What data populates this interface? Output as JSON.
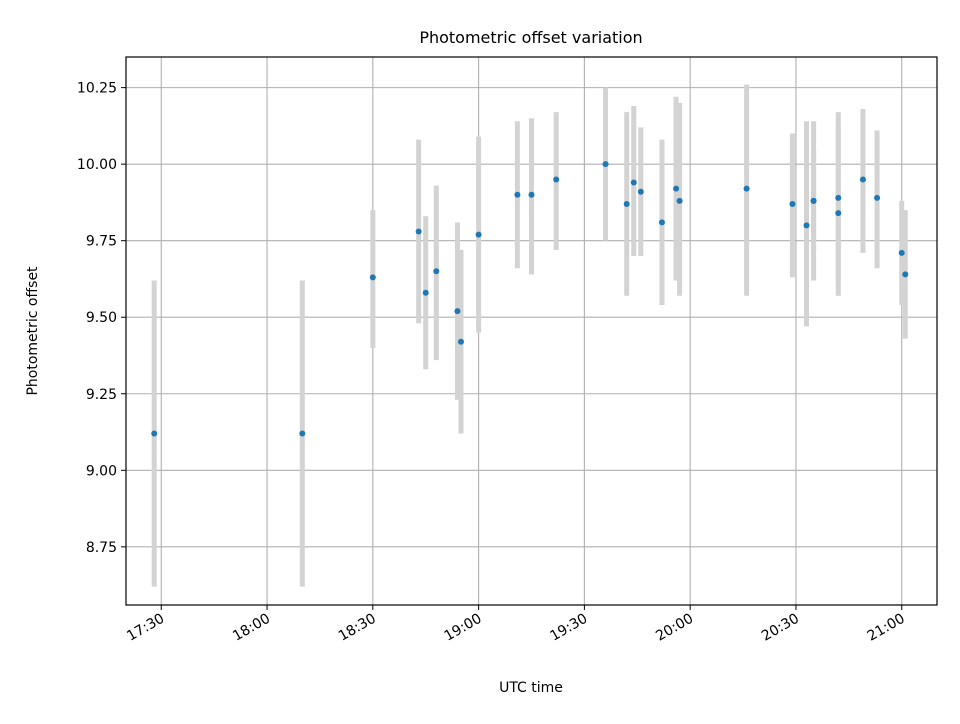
{
  "chart_data": {
    "type": "scatter",
    "title": "Photometric offset variation",
    "xlabel": "UTC time",
    "ylabel": "Photometric offset",
    "x_unit": "UTC time",
    "xlim": [
      "17:20",
      "21:10"
    ],
    "ylim": [
      8.56,
      10.35
    ],
    "x_ticks": [
      "17:30",
      "18:00",
      "18:30",
      "19:00",
      "19:30",
      "20:00",
      "20:30",
      "21:00"
    ],
    "y_ticks": [
      "8.75",
      "9.00",
      "9.25",
      "9.50",
      "9.75",
      "10.00",
      "10.25"
    ],
    "grid": true,
    "marker_color": "#1f77b4",
    "errorbar_color": "#d3d3d3",
    "points": [
      {
        "x": "17:28",
        "y": 9.12,
        "err_low": 8.62,
        "err_high": 9.62
      },
      {
        "x": "18:10",
        "y": 9.12,
        "err_low": 8.62,
        "err_high": 9.62
      },
      {
        "x": "18:30",
        "y": 9.63,
        "err_low": 9.4,
        "err_high": 9.85
      },
      {
        "x": "18:43",
        "y": 9.78,
        "err_low": 9.48,
        "err_high": 10.08
      },
      {
        "x": "18:45",
        "y": 9.58,
        "err_low": 9.33,
        "err_high": 9.83
      },
      {
        "x": "18:48",
        "y": 9.65,
        "err_low": 9.36,
        "err_high": 9.93
      },
      {
        "x": "18:54",
        "y": 9.52,
        "err_low": 9.23,
        "err_high": 9.81
      },
      {
        "x": "18:55",
        "y": 9.42,
        "err_low": 9.12,
        "err_high": 9.72
      },
      {
        "x": "19:00",
        "y": 9.77,
        "err_low": 9.45,
        "err_high": 10.09
      },
      {
        "x": "19:11",
        "y": 9.9,
        "err_low": 9.66,
        "err_high": 10.14
      },
      {
        "x": "19:15",
        "y": 9.9,
        "err_low": 9.64,
        "err_high": 10.15
      },
      {
        "x": "19:22",
        "y": 9.95,
        "err_low": 9.72,
        "err_high": 10.17
      },
      {
        "x": "19:36",
        "y": 10.0,
        "err_low": 9.75,
        "err_high": 10.25
      },
      {
        "x": "19:42",
        "y": 9.87,
        "err_low": 9.57,
        "err_high": 10.17
      },
      {
        "x": "19:44",
        "y": 9.94,
        "err_low": 9.7,
        "err_high": 10.19
      },
      {
        "x": "19:46",
        "y": 9.91,
        "err_low": 9.7,
        "err_high": 10.12
      },
      {
        "x": "19:52",
        "y": 9.81,
        "err_low": 9.54,
        "err_high": 10.08
      },
      {
        "x": "19:56",
        "y": 9.92,
        "err_low": 9.62,
        "err_high": 10.22
      },
      {
        "x": "19:57",
        "y": 9.88,
        "err_low": 9.57,
        "err_high": 10.2
      },
      {
        "x": "20:16",
        "y": 9.92,
        "err_low": 9.57,
        "err_high": 10.26
      },
      {
        "x": "20:29",
        "y": 9.87,
        "err_low": 9.63,
        "err_high": 10.1
      },
      {
        "x": "20:33",
        "y": 9.8,
        "err_low": 9.47,
        "err_high": 10.14
      },
      {
        "x": "20:35",
        "y": 9.88,
        "err_low": 9.71,
        "err_high": 10.05
      },
      {
        "x": "20:35",
        "y": 9.88,
        "err_low": 9.62,
        "err_high": 10.14
      },
      {
        "x": "20:42",
        "y": 9.84,
        "err_low": 9.57,
        "err_high": 10.12
      },
      {
        "x": "20:42",
        "y": 9.89,
        "err_low": 9.62,
        "err_high": 10.17
      },
      {
        "x": "20:49",
        "y": 9.95,
        "err_low": 9.71,
        "err_high": 10.18
      },
      {
        "x": "20:53",
        "y": 9.89,
        "err_low": 9.66,
        "err_high": 10.11
      },
      {
        "x": "21:00",
        "y": 9.71,
        "err_low": 9.54,
        "err_high": 9.88
      },
      {
        "x": "21:01",
        "y": 9.64,
        "err_low": 9.43,
        "err_high": 9.85
      }
    ]
  }
}
